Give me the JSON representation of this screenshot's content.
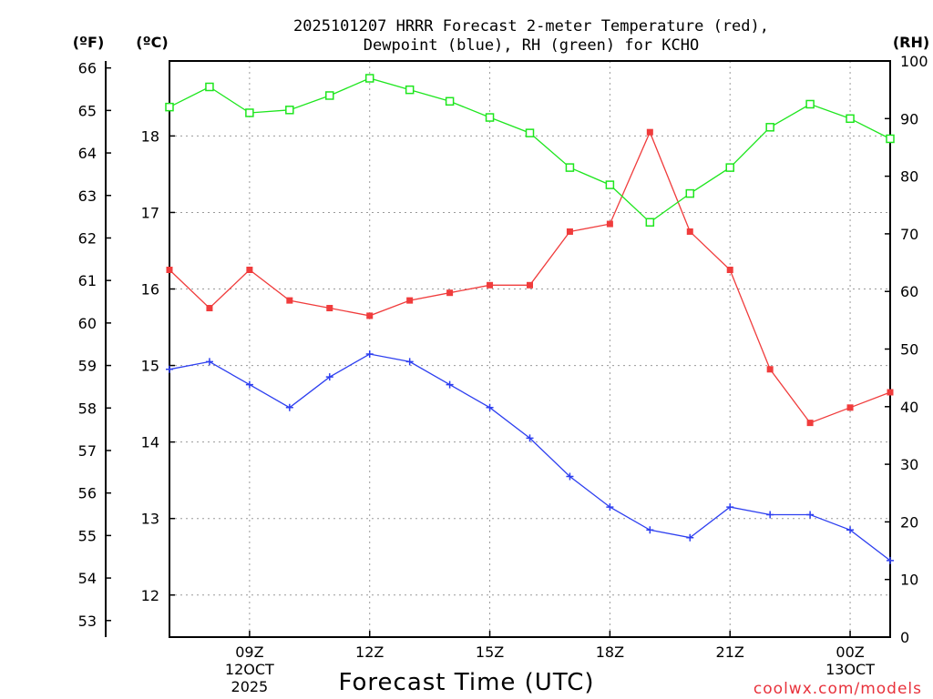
{
  "chart_data": {
    "type": "line",
    "title": [
      "2025101207 HRRR Forecast 2-meter Temperature (red),",
      "Dewpoint (blue), RH (green) for KCHO"
    ],
    "xlabel": "Forecast Time (UTC)",
    "credit": "coolwx.com/models",
    "units": {
      "fahrenheit": "(ºF)",
      "celsius": "(ºC)",
      "rh": "(RH)"
    },
    "x_hours": [
      7,
      8,
      9,
      10,
      11,
      12,
      13,
      14,
      15,
      16,
      17,
      18,
      19,
      20,
      21,
      22,
      23,
      24,
      25
    ],
    "x_ticks": [
      {
        "hour": 9,
        "lines": [
          "09Z",
          "12OCT",
          "2025"
        ]
      },
      {
        "hour": 12,
        "lines": [
          "12Z"
        ]
      },
      {
        "hour": 15,
        "lines": [
          "15Z"
        ]
      },
      {
        "hour": 18,
        "lines": [
          "18Z"
        ]
      },
      {
        "hour": 21,
        "lines": [
          "21Z"
        ]
      },
      {
        "hour": 24,
        "lines": [
          "00Z",
          "13OCT"
        ]
      }
    ],
    "celsius_axis": {
      "ticks": [
        12,
        13,
        14,
        15,
        16,
        17,
        18
      ],
      "range": [
        11.45,
        18.98
      ]
    },
    "fahrenheit_axis": {
      "ticks": [
        53,
        54,
        55,
        56,
        57,
        58,
        59,
        60,
        61,
        62,
        63,
        64,
        65,
        66
      ]
    },
    "rh_axis": {
      "ticks": [
        0,
        10,
        20,
        30,
        40,
        50,
        60,
        70,
        80,
        90,
        100
      ],
      "range": [
        0,
        100
      ]
    },
    "series": [
      {
        "name": "Temperature",
        "axis": "celsius",
        "color": "#f03c3c",
        "marker": "filled-square",
        "values": [
          16.25,
          15.75,
          16.25,
          15.85,
          15.75,
          15.65,
          15.85,
          15.95,
          16.05,
          16.05,
          16.75,
          16.85,
          18.05,
          16.75,
          16.25,
          14.95,
          14.25,
          14.45,
          14.65
        ]
      },
      {
        "name": "Dewpoint",
        "axis": "celsius",
        "color": "#2d3ff0",
        "marker": "plus",
        "values": [
          14.95,
          15.05,
          14.75,
          14.45,
          14.85,
          15.15,
          15.05,
          14.75,
          14.45,
          14.05,
          13.55,
          13.15,
          12.85,
          12.75,
          13.15,
          13.05,
          13.05,
          12.85,
          12.45
        ]
      },
      {
        "name": "RH",
        "axis": "rh",
        "color": "#1ee61e",
        "marker": "open-square",
        "values": [
          92,
          95.5,
          91,
          91.5,
          94,
          97,
          95,
          93,
          90.2,
          87.5,
          81.5,
          78.5,
          72,
          77,
          81.5,
          88.5,
          92.5,
          90,
          86.5
        ]
      }
    ]
  }
}
